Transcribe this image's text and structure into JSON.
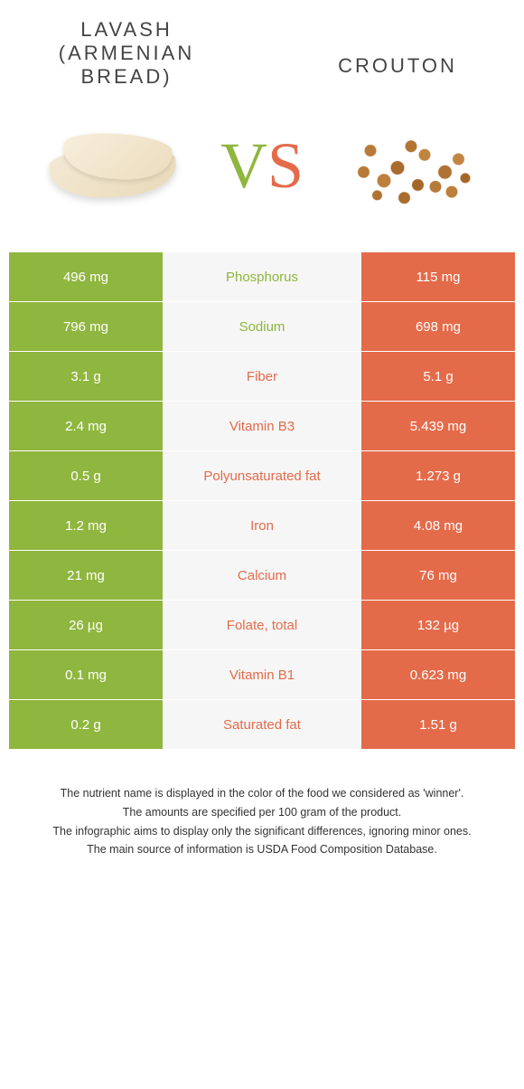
{
  "colors": {
    "left": "#8fb63e",
    "right": "#e46b4a",
    "mid_bg": "#f6f6f6",
    "text": "#333333",
    "background": "#ffffff"
  },
  "header": {
    "left_title": "Lavash (Armenian bread)",
    "right_title": "Crouton",
    "vs_v": "V",
    "vs_s": "S"
  },
  "rows": [
    {
      "left": "496 mg",
      "label": "Phosphorus",
      "right": "115 mg",
      "winner": "left"
    },
    {
      "left": "796 mg",
      "label": "Sodium",
      "right": "698 mg",
      "winner": "left"
    },
    {
      "left": "3.1 g",
      "label": "Fiber",
      "right": "5.1 g",
      "winner": "right"
    },
    {
      "left": "2.4 mg",
      "label": "Vitamin B3",
      "right": "5.439 mg",
      "winner": "right"
    },
    {
      "left": "0.5 g",
      "label": "Polyunsaturated fat",
      "right": "1.273 g",
      "winner": "right"
    },
    {
      "left": "1.2 mg",
      "label": "Iron",
      "right": "4.08 mg",
      "winner": "right"
    },
    {
      "left": "21 mg",
      "label": "Calcium",
      "right": "76 mg",
      "winner": "right"
    },
    {
      "left": "26 µg",
      "label": "Folate, total",
      "right": "132 µg",
      "winner": "right"
    },
    {
      "left": "0.1 mg",
      "label": "Vitamin B1",
      "right": "0.623 mg",
      "winner": "right"
    },
    {
      "left": "0.2 g",
      "label": "Saturated fat",
      "right": "1.51 g",
      "winner": "right"
    }
  ],
  "footer": {
    "line1": "The nutrient name is displayed in the color of the food we considered as 'winner'.",
    "line2": "The amounts are specified per 100 gram of the product.",
    "line3": "The infographic aims to display only the significant differences, ignoring minor ones.",
    "line4": "The main source of information is USDA Food Composition Database."
  }
}
